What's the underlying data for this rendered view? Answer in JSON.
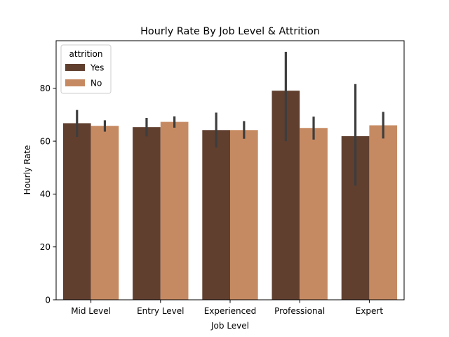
{
  "chart_data": {
    "type": "bar",
    "title": "Hourly Rate By Job Level & Attrition",
    "xlabel": "Job Level",
    "ylabel": "Hourly Rate",
    "categories": [
      "Mid Level",
      "Entry Level",
      "Experienced",
      "Professional",
      "Expert"
    ],
    "ylim": [
      0,
      98
    ],
    "yticks": [
      0,
      20,
      40,
      60,
      80
    ],
    "ytick_labels": [
      "0",
      "20",
      "40",
      "60",
      "80"
    ],
    "grid": false,
    "legend": {
      "title": "attrition",
      "placement": "top-left"
    },
    "series": [
      {
        "name": "Yes",
        "color": "#603f2f",
        "values": [
          66.8,
          65.3,
          64.2,
          79.1,
          61.9
        ],
        "ci_low": [
          61.6,
          61.8,
          57.6,
          60.0,
          43.2
        ],
        "ci_high": [
          71.8,
          68.8,
          70.8,
          93.8,
          81.6
        ]
      },
      {
        "name": "No",
        "color": "#c68a62",
        "values": [
          65.8,
          67.3,
          64.2,
          65.0,
          66.0
        ],
        "ci_low": [
          63.6,
          65.1,
          60.9,
          60.6,
          61.0
        ],
        "ci_high": [
          67.9,
          69.4,
          67.6,
          69.3,
          71.1
        ]
      }
    ],
    "errorbar_color": "#3d3d3d"
  }
}
